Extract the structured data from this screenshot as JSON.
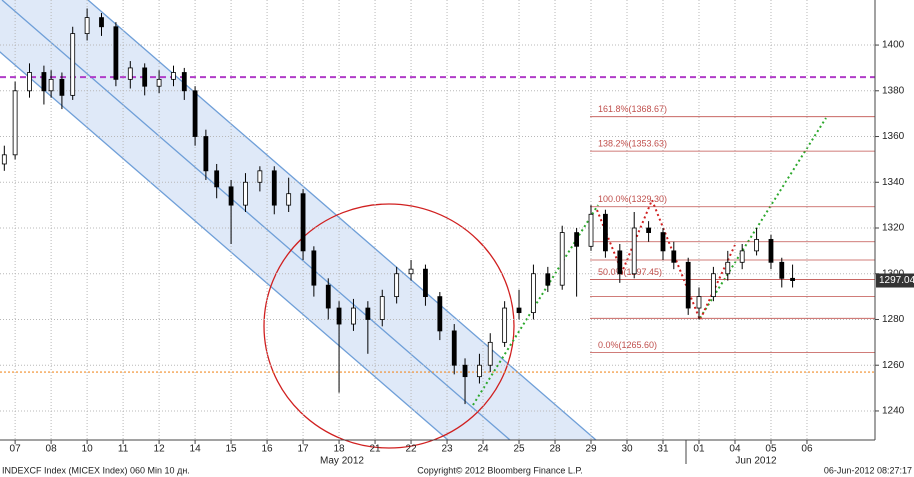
{
  "chart_data": {
    "type": "candlestick",
    "categories": [
      "07",
      "08",
      "10",
      "11",
      "12",
      "14",
      "15",
      "16",
      "17",
      "18",
      "21",
      "22",
      "23",
      "24",
      "25",
      "28",
      "29",
      "30",
      "31",
      "01",
      "04",
      "05",
      "06"
    ],
    "months": [
      "May 2012",
      "Jun 2012"
    ],
    "xlim": [
      -0.42,
      23.89
    ],
    "ylim": [
      1227.3,
      1419.7
    ],
    "yticks": [
      1240,
      1260,
      1280,
      1300,
      1320,
      1340,
      1360,
      1380,
      1400
    ],
    "grid": true,
    "candle_up_color": "#ffffff",
    "candle_down_color": "#000000",
    "candles": {
      "x": [
        -0.3,
        0,
        0.4,
        0.8,
        1.0,
        1.3,
        1.6,
        2.0,
        2.4,
        2.8,
        3.2,
        3.6,
        4.0,
        4.4,
        4.7,
        5.0,
        5.3,
        5.6,
        6.0,
        6.4,
        6.8,
        7.2,
        7.6,
        8.0,
        8.3,
        8.7,
        9.0,
        9.4,
        9.8,
        10.2,
        10.6,
        11.0,
        11.4,
        11.8,
        12.2,
        12.5,
        12.9,
        13.2,
        13.6,
        14.0,
        14.4,
        14.8,
        15.2,
        15.6,
        16.0,
        16.4,
        16.8,
        17.2,
        17.6,
        18.0,
        18.3,
        18.7,
        19.0,
        19.4,
        19.8,
        20.2,
        20.6,
        21.0,
        21.3,
        21.6
      ],
      "open": [
        1348,
        1352,
        1380,
        1388,
        1380,
        1385,
        1378,
        1405,
        1412,
        1408,
        1385,
        1390,
        1382,
        1385,
        1388,
        1380,
        1360,
        1345,
        1338,
        1330,
        1340,
        1345,
        1330,
        1335,
        1310,
        1295,
        1285,
        1278,
        1285,
        1280,
        1290,
        1300,
        1302,
        1290,
        1275,
        1260,
        1255,
        1260,
        1270,
        1285,
        1283,
        1300,
        1295,
        1318,
        1312,
        1326,
        1310,
        1300,
        1320,
        1318,
        1310,
        1305,
        1285,
        1290,
        1300,
        1305,
        1310,
        1315,
        1305,
        1298
      ],
      "high": [
        1356,
        1384,
        1392,
        1391,
        1389,
        1388,
        1408,
        1416,
        1414,
        1410,
        1393,
        1392,
        1389,
        1391,
        1390,
        1382,
        1363,
        1348,
        1341,
        1344,
        1347,
        1347,
        1342,
        1337,
        1312,
        1298,
        1288,
        1289,
        1288,
        1293,
        1303,
        1306,
        1304,
        1292,
        1278,
        1263,
        1265,
        1274,
        1288,
        1293,
        1304,
        1303,
        1321,
        1320,
        1330,
        1328,
        1313,
        1327,
        1323,
        1320,
        1314,
        1307,
        1294,
        1303,
        1310,
        1313,
        1320,
        1317,
        1307,
        1304
      ],
      "low": [
        1345,
        1350,
        1377,
        1374,
        1377,
        1372,
        1376,
        1402,
        1404,
        1382,
        1381,
        1378,
        1379,
        1382,
        1376,
        1356,
        1341,
        1333,
        1313,
        1327,
        1336,
        1326,
        1327,
        1306,
        1290,
        1280,
        1248,
        1275,
        1265,
        1277,
        1287,
        1297,
        1286,
        1271,
        1256,
        1243,
        1252,
        1257,
        1268,
        1280,
        1280,
        1292,
        1293,
        1290,
        1310,
        1307,
        1296,
        1298,
        1314,
        1306,
        1302,
        1282,
        1280,
        1288,
        1297,
        1302,
        1308,
        1302,
        1294,
        1294
      ],
      "close": [
        1352,
        1380,
        1388,
        1380,
        1385,
        1378,
        1405,
        1412,
        1408,
        1385,
        1390,
        1382,
        1385,
        1388,
        1380,
        1360,
        1345,
        1338,
        1330,
        1340,
        1345,
        1330,
        1335,
        1310,
        1295,
        1285,
        1278,
        1285,
        1280,
        1290,
        1300,
        1302,
        1290,
        1275,
        1260,
        1255,
        1260,
        1270,
        1285,
        1283,
        1300,
        1295,
        1318,
        1312,
        1326,
        1310,
        1300,
        1320,
        1318,
        1310,
        1305,
        1285,
        1290,
        1300,
        1305,
        1310,
        1315,
        1305,
        1298,
        1297
      ]
    },
    "levels": [
      {
        "value": 1386,
        "color": "#b03cc8"
      },
      {
        "value": 1257,
        "color": "#f08c28"
      }
    ],
    "fib_color": "#c0504d",
    "fib_levels": [
      {
        "value": 1368.67,
        "label": "161.8%(1368.67)"
      },
      {
        "value": 1353.63,
        "label": "138.2%(1353.63)"
      },
      {
        "value": 1329.3,
        "label": "100.0%(1329.30)"
      },
      {
        "value": 1297.45,
        "label": "50.0%(1297.45)"
      },
      {
        "value": 1265.6,
        "label": "0.0%(1265.60)"
      }
    ],
    "extra_levels": [
      1314,
      1306,
      1290,
      1280.5
    ],
    "last_price": 1297.04,
    "footer": {
      "left": "INDEXCF Index (MICEX Index) 060 Min 10 дн.",
      "center": "Copyright© 2012 Bloomberg Finance L.P.",
      "right": "06-Jun-2012 08:27:17"
    }
  }
}
